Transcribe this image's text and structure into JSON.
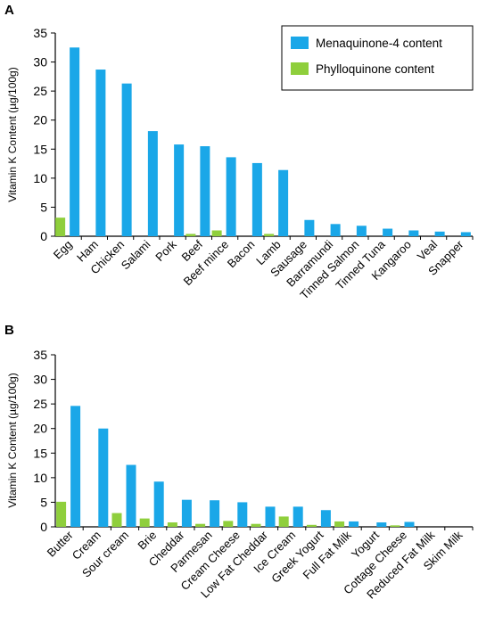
{
  "colors": {
    "menaquinone": "#1aa7e8",
    "phylloquinone": "#8fcf3c",
    "axis": "#000000"
  },
  "chart_data": [
    {
      "panel": "A",
      "type": "bar",
      "ylabel": "Vitamin K Content (µg/100g)",
      "ylim": [
        0,
        35
      ],
      "yticks": [
        "0",
        "5",
        "10",
        "15",
        "20",
        "25",
        "30",
        "35"
      ],
      "grid": false,
      "legend_placement": "top-right",
      "categories": [
        "Egg",
        "Ham",
        "Chicken",
        "Salami",
        "Pork",
        "Beef",
        "Beef mince",
        "Bacon",
        "Lamb",
        "Sausage",
        "Barramundi",
        "Tinned Salmon",
        "Tinned Tuna",
        "Kangaroo",
        "Veal",
        "Snapper"
      ],
      "series": [
        {
          "name": "Menaquinone-4 content",
          "values": [
            32.5,
            28.7,
            26.3,
            18.1,
            15.8,
            15.5,
            13.6,
            12.6,
            11.4,
            2.8,
            2.1,
            1.8,
            1.3,
            1.0,
            0.8,
            0.7
          ]
        },
        {
          "name": "Phylloquinone content",
          "values": [
            3.2,
            0,
            0,
            0,
            0,
            0.4,
            1.0,
            0,
            0.4,
            0,
            0,
            0,
            0,
            0,
            0,
            0
          ]
        }
      ]
    },
    {
      "panel": "B",
      "type": "bar",
      "ylabel": "Vitamin K Content (µg/100g)",
      "ylim": [
        0,
        35
      ],
      "yticks": [
        "0",
        "5",
        "10",
        "15",
        "20",
        "25",
        "30",
        "35"
      ],
      "grid": false,
      "categories": [
        "Butter",
        "Cream",
        "Sour cream",
        "Brie",
        "Cheddar",
        "Parmesan",
        "Cream Cheese",
        "Low Fat Cheddar",
        "Ice Cream",
        "Greek Yogurt",
        "Full Fat Milk",
        "Yogurt",
        "Cottage Cheese",
        "Reduced Fat Milk",
        "Skim Milk"
      ],
      "series": [
        {
          "name": "Menaquinone-4 content",
          "values": [
            24.6,
            20.0,
            12.6,
            9.2,
            5.5,
            5.4,
            5.0,
            4.1,
            4.1,
            3.4,
            1.1,
            0.9,
            1.0,
            0,
            0
          ]
        },
        {
          "name": "Phylloquinone content",
          "values": [
            5.1,
            0,
            2.8,
            1.7,
            0.9,
            0.6,
            1.2,
            0.6,
            2.1,
            0.4,
            1.1,
            0,
            0.3,
            0,
            0
          ]
        }
      ]
    }
  ]
}
